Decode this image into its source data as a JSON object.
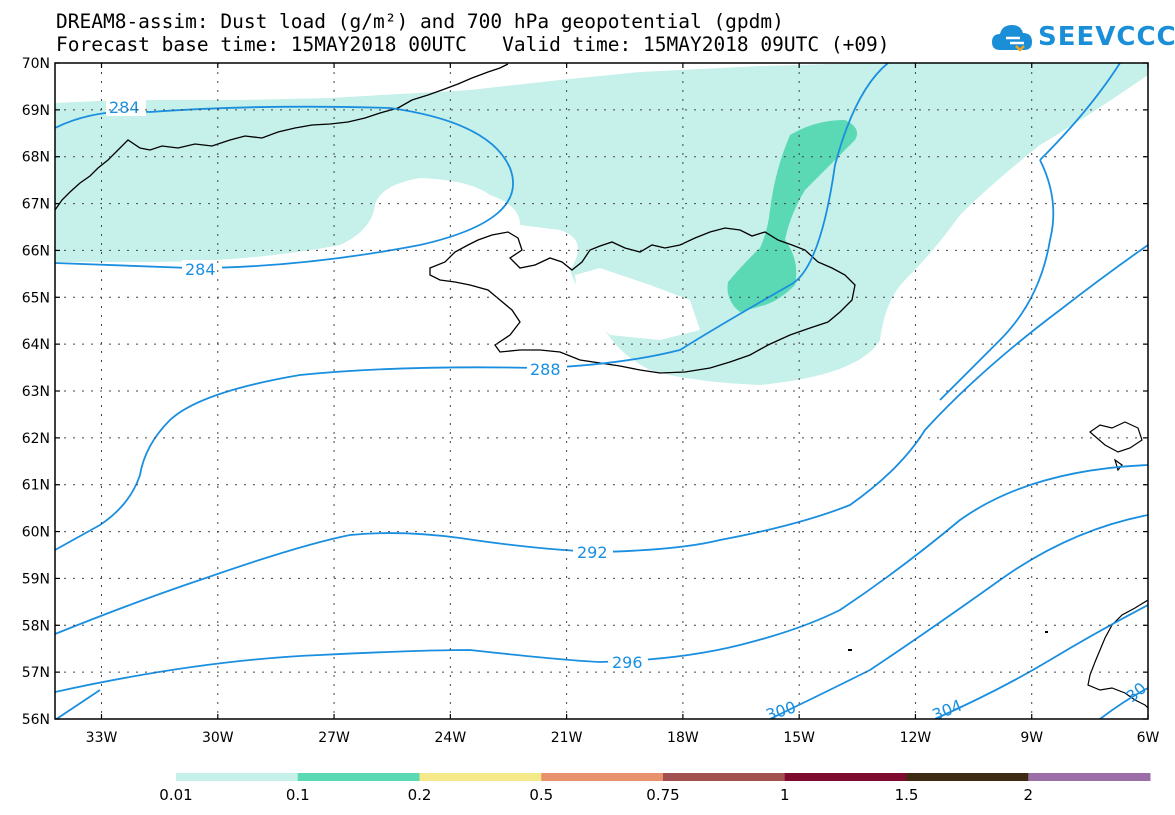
{
  "title": {
    "line1": "DREAM8-assim: Dust load (g/m²) and 700 hPa geopotential (gpdm)",
    "line2": "Forecast base time: 15MAY2018 00UTC   Valid time: 15MAY2018 09UTC (+09)"
  },
  "logo": {
    "text": "SEEVCCC",
    "icon": "cloud-icon"
  },
  "map": {
    "lat_ticks": [
      "70N",
      "69N",
      "68N",
      "67N",
      "66N",
      "65N",
      "64N",
      "63N",
      "62N",
      "61N",
      "60N",
      "59N",
      "58N",
      "57N",
      "56N"
    ],
    "lon_ticks": [
      "33W",
      "30W",
      "27W",
      "24W",
      "21W",
      "18W",
      "15W",
      "12W",
      "9W",
      "6W"
    ],
    "lat_range": [
      56,
      70
    ],
    "lon_range": [
      -34.2,
      -6
    ],
    "grid": "dotted"
  },
  "contours": {
    "color": "#1a8fe0",
    "labels": [
      "284",
      "284",
      "288",
      "292",
      "296",
      "300",
      "304",
      "30"
    ]
  },
  "dust": {
    "levels": [
      {
        "label": "0.01",
        "color": "#c6f0ea"
      },
      {
        "label": "0.1",
        "color": "#5ad9b4"
      },
      {
        "label": "0.2",
        "color": "#f6e98a"
      },
      {
        "label": "0.5",
        "color": "#e9906c"
      },
      {
        "label": "0.75",
        "color": "#a35050"
      },
      {
        "label": "1",
        "color": "#7e0a2e"
      },
      {
        "label": "1.5",
        "color": "#3e2a14"
      },
      {
        "label": "2",
        "color": "#9c6ea8"
      }
    ]
  }
}
